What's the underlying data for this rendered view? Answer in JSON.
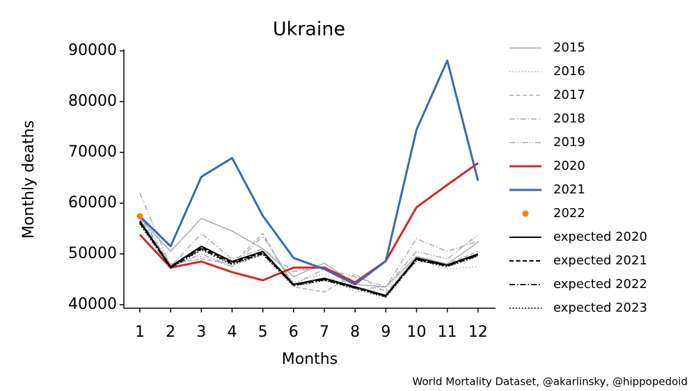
{
  "chart_data": {
    "type": "line",
    "title": "Ukraine",
    "xlabel": "Months",
    "ylabel": "Monthly deaths",
    "annotation": "World Mortality Dataset, @akarlinsky, @hippopedoid",
    "x": [
      1,
      2,
      3,
      4,
      5,
      6,
      7,
      8,
      9,
      10,
      11,
      12
    ],
    "xlim": [
      0.48,
      12.57
    ],
    "xticks": [
      1,
      2,
      3,
      4,
      5,
      6,
      7,
      8,
      9,
      10,
      11,
      12
    ],
    "ylim": [
      39300,
      90300
    ],
    "yticks": [
      40000,
      50000,
      60000,
      70000,
      80000,
      90000
    ],
    "grid": false,
    "legend": "outside right",
    "series": [
      {
        "name": "2015",
        "color": "#aaaaaa",
        "label_color": "#aaaaaa",
        "linestyle": "solid",
        "linewidth": 1.5,
        "values": [
          57000,
          50500,
          57000,
          54500,
          51000,
          45500,
          48200,
          44000,
          43500,
          49500,
          48000,
          52300
        ]
      },
      {
        "name": "2016",
        "color": "#aaaaaa",
        "label_color": "#aaaaaa",
        "linestyle": "dotted",
        "linewidth": 1.5,
        "values": [
          56000,
          48000,
          49500,
          47500,
          50000,
          44500,
          46000,
          42500,
          43000,
          49000,
          47000,
          47500
        ]
      },
      {
        "name": "2017",
        "color": "#aaaaaa",
        "label_color": "#aaaaaa",
        "linestyle": "dashed",
        "linewidth": 1.5,
        "values": [
          57000,
          48000,
          49000,
          48000,
          54000,
          43500,
          42500,
          46000,
          42500,
          48500,
          48000,
          50500
        ]
      },
      {
        "name": "2018",
        "color": "#aaaaaa",
        "label_color": "#aaaaaa",
        "linestyle": "dashdot",
        "linewidth": 1.5,
        "values": [
          58000,
          47500,
          54000,
          49000,
          51000,
          46500,
          47500,
          43000,
          43500,
          53000,
          50500,
          52500
        ]
      },
      {
        "name": "2019",
        "color": "#aaaaaa",
        "label_color": "#aaaaaa",
        "linestyle": "dashdotdot",
        "linewidth": 1.5,
        "values": [
          62000,
          47500,
          50000,
          47500,
          53500,
          44000,
          47000,
          45500,
          43500,
          50500,
          49000,
          53800
        ]
      },
      {
        "name": "2020",
        "color": "#d62728",
        "label_color": "#000000",
        "linestyle": "solid",
        "linewidth": 3,
        "values": [
          53800,
          47300,
          48500,
          46400,
          44800,
          47300,
          47300,
          44400,
          48600,
          59200,
          63600,
          67900
        ]
      },
      {
        "name": "2021",
        "color": "#3a6aad",
        "label_color": "#000000",
        "linestyle": "solid",
        "linewidth": 3,
        "values": [
          57400,
          51500,
          65200,
          68900,
          57500,
          49200,
          47000,
          44000,
          48600,
          74500,
          88100,
          64400
        ]
      },
      {
        "name": "2022",
        "color": "#ff7f0e",
        "label_color": "#000000",
        "linestyle": "marker",
        "linewidth": 0,
        "values": [
          57400,
          null,
          null,
          null,
          null,
          null,
          null,
          null,
          null,
          null,
          null,
          null
        ]
      },
      {
        "name": "expected 2020",
        "color": "#000000",
        "label_color": "#000000",
        "linestyle": "solid",
        "linewidth": 2,
        "values": [
          56500,
          47500,
          51500,
          48500,
          50500,
          44000,
          45200,
          43500,
          41800,
          49200,
          47800,
          50000
        ]
      },
      {
        "name": "expected 2021",
        "color": "#000000",
        "label_color": "#000000",
        "linestyle": "dashed",
        "linewidth": 2,
        "values": [
          56300,
          47400,
          51200,
          48300,
          50300,
          43900,
          45000,
          43400,
          41700,
          49000,
          47700,
          49800
        ]
      },
      {
        "name": "expected 2022",
        "color": "#000000",
        "label_color": "#000000",
        "linestyle": "dashdot",
        "linewidth": 2,
        "values": [
          56100,
          47300,
          51000,
          48100,
          50100,
          43800,
          44900,
          43300,
          41600,
          48900,
          47600,
          49700
        ]
      },
      {
        "name": "expected 2023",
        "color": "#000000",
        "label_color": "#000000",
        "linestyle": "dotted",
        "linewidth": 2,
        "values": [
          55900,
          47200,
          50800,
          47900,
          49900,
          43700,
          44800,
          43200,
          41500,
          48800,
          47500,
          49600
        ]
      }
    ]
  }
}
